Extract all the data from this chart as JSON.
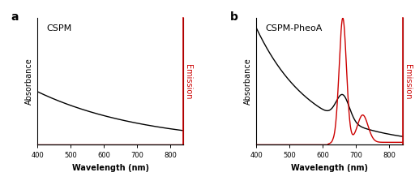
{
  "panel_a_label": "a",
  "panel_b_label": "b",
  "title_a": "CSPM",
  "title_b": "CSPM-PheoA",
  "xlabel": "Wavelength (nm)",
  "ylabel_left": "Absorbance",
  "ylabel_right": "Emission",
  "xmin": 400,
  "xmax": 840,
  "xticks": [
    400,
    500,
    600,
    700,
    800
  ],
  "black_color": "#000000",
  "red_color": "#cc0000",
  "background_color": "#ffffff",
  "linewidth": 1.0,
  "tick_fontsize": 6,
  "label_fontsize": 7,
  "title_fontsize": 8,
  "panel_label_fontsize": 10
}
